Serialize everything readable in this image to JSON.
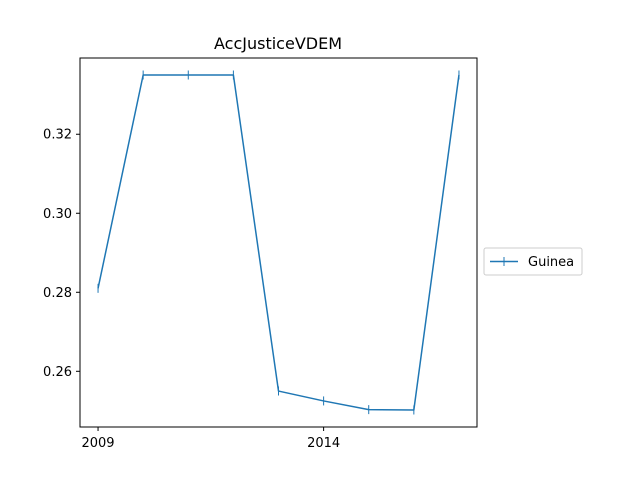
{
  "chart_data": {
    "type": "line",
    "title": "AccJusticeVDEM",
    "xlabel": "",
    "ylabel": "",
    "x": [
      2009,
      2010,
      2011,
      2012,
      2013,
      2014,
      2015,
      2016,
      2017
    ],
    "series": [
      {
        "name": "Guinea",
        "values": [
          0.281,
          0.335,
          0.335,
          0.335,
          0.255,
          0.2525,
          0.2503,
          0.2502,
          0.335
        ],
        "color": "#1f77b4",
        "marker": "|"
      }
    ],
    "xticks": [
      2009,
      2014
    ],
    "xtick_labels": [
      "2009",
      "2014"
    ],
    "yticks": [
      0.26,
      0.28,
      0.3,
      0.32
    ],
    "ytick_labels": [
      "0.26",
      "0.28",
      "0.30",
      "0.32"
    ],
    "xlim": [
      2008.6,
      2017.4
    ],
    "ylim": [
      0.2459,
      0.3393
    ],
    "grid": false,
    "legend_position": "center-right"
  }
}
